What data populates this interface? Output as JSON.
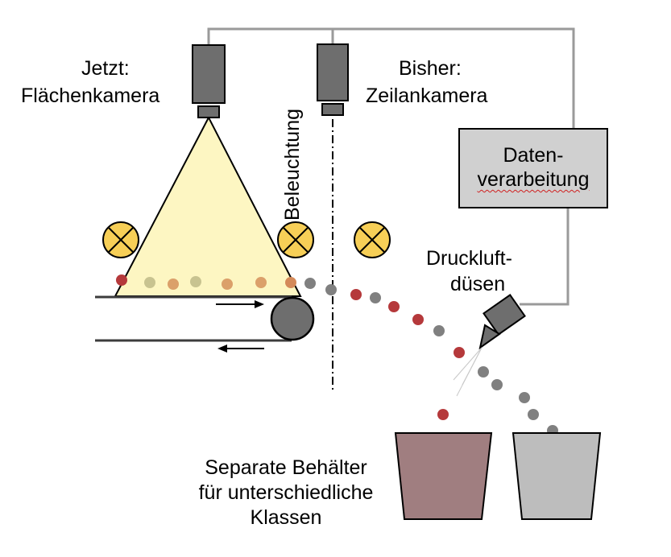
{
  "labels": {
    "area_camera_line1": "Jetzt:",
    "area_camera_line2": "Flächenkamera",
    "line_camera_line1": "Bisher:",
    "line_camera_line2": "Zeilankamera",
    "lighting": "Beleuchtung",
    "data_processing_line1": "Daten-",
    "data_processing_line2": "verarbeitung",
    "air_nozzles_line1": "Druckluft-",
    "air_nozzles_line2": "düsen",
    "containers_line1": "Separate Behälter",
    "containers_line2": "für unterschiedliche",
    "containers_line3": "Klassen"
  },
  "colors": {
    "camera": "#6e6e6e",
    "wire": "#9a9a9a",
    "light_cone": "#fdf6c2",
    "lamp_fill": "#f7cf57",
    "belt": "#3c3c3c",
    "processing_box": "#d0d0d0",
    "red_particle": "#b5393b",
    "gray_particle": "#808080",
    "red_bin": "#a07e80",
    "gray_bin": "#bdbdbd"
  },
  "icons": [
    "lamp-icon",
    "camera-icon",
    "nozzle-icon",
    "arrow-icon"
  ]
}
